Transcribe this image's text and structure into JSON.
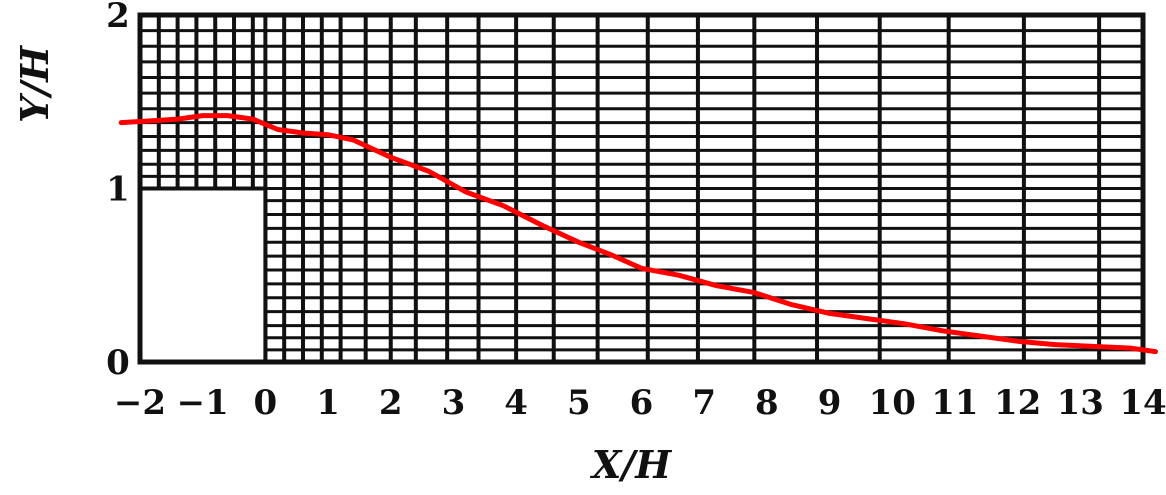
{
  "chart_data": {
    "type": "line",
    "title": "",
    "xlabel": "X/H",
    "ylabel": "Y/H",
    "xlim": [
      -2,
      14
    ],
    "ylim": [
      0,
      2
    ],
    "x_ticks": [
      -2,
      -1,
      0,
      1,
      2,
      3,
      4,
      5,
      6,
      7,
      8,
      9,
      10,
      11,
      12,
      13,
      14
    ],
    "x_tick_labels": [
      "−2",
      "−1",
      "0",
      "1",
      "2",
      "3",
      "4",
      "5",
      "6",
      "7",
      "8",
      "9",
      "10",
      "11",
      "12",
      "13",
      "14"
    ],
    "y_ticks": [
      0,
      1,
      2
    ],
    "y_tick_labels": [
      "0",
      "1",
      "2"
    ],
    "grid": true,
    "obstacle": {
      "x": [
        -2,
        0
      ],
      "y": [
        0,
        1
      ]
    },
    "grid_columns_x": [
      -2,
      -1.7,
      -1.4,
      -1.1,
      -0.8,
      -0.5,
      -0.2,
      0,
      0.3,
      0.6,
      0.9,
      1.2,
      1.6,
      2.0,
      2.4,
      2.9,
      3.4,
      4.0,
      4.6,
      5.3,
      6.1,
      6.9,
      7.8,
      8.8,
      9.8,
      10.9,
      12.1,
      13.3,
      14
    ],
    "grid_rows_y": [
      0,
      0.07,
      0.14,
      0.21,
      0.29,
      0.37,
      0.45,
      0.53,
      0.61,
      0.69,
      0.77,
      0.85,
      0.93,
      1.0,
      1.07,
      1.14,
      1.22,
      1.3,
      1.38,
      1.46,
      1.55,
      1.64,
      1.73,
      1.82,
      1.91,
      2.0
    ],
    "series": [
      {
        "color": "#ff0000",
        "x": [
          -2.3,
          -1.8,
          -1.4,
          -1.0,
          -0.6,
          -0.2,
          0.2,
          0.6,
          1.0,
          1.4,
          2.0,
          2.6,
          3.2,
          3.8,
          4.4,
          5.0,
          5.5,
          6.0,
          6.6,
          7.2,
          7.8,
          8.4,
          9.0,
          9.6,
          10.2,
          10.8,
          11.4,
          12.0,
          12.6,
          13.2,
          13.8,
          14.2
        ],
        "y": [
          1.38,
          1.39,
          1.4,
          1.42,
          1.42,
          1.4,
          1.34,
          1.32,
          1.31,
          1.28,
          1.18,
          1.1,
          0.98,
          0.9,
          0.79,
          0.69,
          0.62,
          0.54,
          0.5,
          0.44,
          0.4,
          0.33,
          0.28,
          0.25,
          0.22,
          0.18,
          0.15,
          0.12,
          0.1,
          0.09,
          0.08,
          0.06
        ]
      }
    ]
  }
}
